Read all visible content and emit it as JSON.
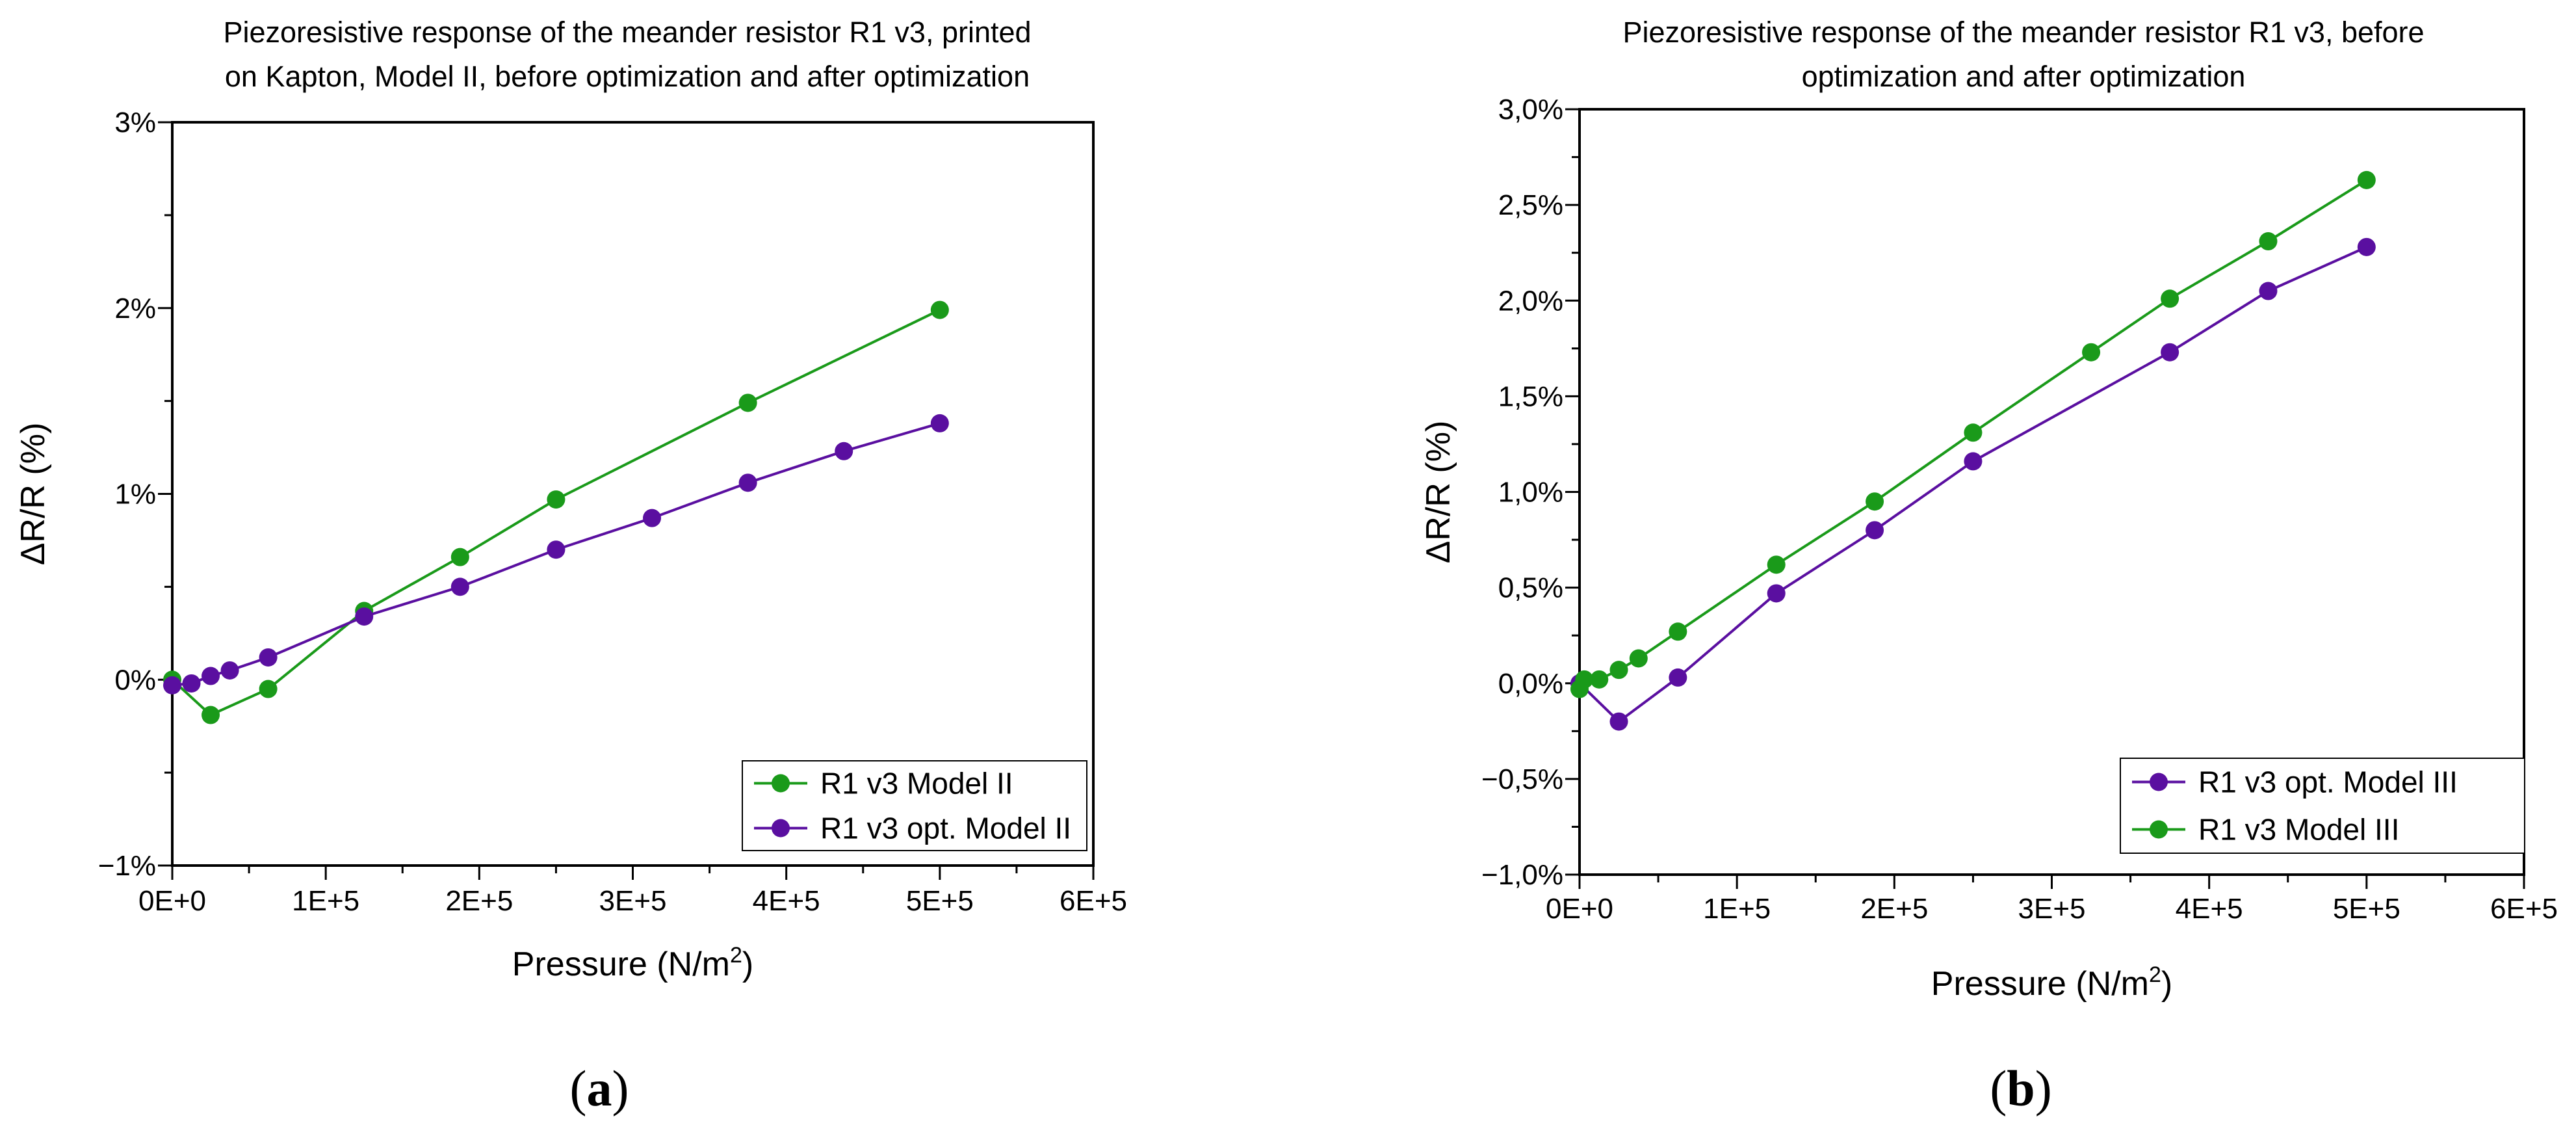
{
  "figure": {
    "panel_a": {
      "open": "(",
      "letter": "a",
      "close": ")"
    },
    "panel_b": {
      "open": "(",
      "letter": "b",
      "close": ")"
    }
  },
  "chart_data": [
    {
      "id": "a",
      "type": "line",
      "title_lines": [
        "Piezoresistive response of the meander resistor R1 v3, printed",
        "on Kapton, Model II, before optimization and after optimization"
      ],
      "xlabel": "Pressure (N/m",
      "xlabel_sup": "2",
      "xlabel_close": ")",
      "ylabel": "ΔR/R (%)",
      "xlim": [
        0,
        600000
      ],
      "ylim": [
        -1,
        3
      ],
      "xticks": [
        0,
        100000,
        200000,
        300000,
        400000,
        500000,
        600000
      ],
      "xtick_labels": [
        "0E+0",
        "1E+5",
        "2E+5",
        "3E+5",
        "4E+5",
        "5E+5",
        "6E+5"
      ],
      "yticks": [
        -1,
        0,
        1,
        2,
        3
      ],
      "ytick_labels": [
        "−1%",
        "0%",
        "1%",
        "2%",
        "3%"
      ],
      "grid": false,
      "legend_position": "bottom-right",
      "series": [
        {
          "name": "R1 v3 Model II",
          "color": "#1a9a1a",
          "x": [
            0,
            25000,
            62500,
            125000,
            187500,
            250000,
            375000,
            500000
          ],
          "y": [
            0.0,
            -0.19,
            -0.05,
            0.37,
            0.66,
            0.97,
            1.49,
            1.99
          ]
        },
        {
          "name": "R1 v3 opt. Model II",
          "color": "#5a0fa0",
          "x": [
            0,
            12500,
            25000,
            37500,
            62500,
            125000,
            187500,
            250000,
            312500,
            375000,
            437500,
            500000
          ],
          "y": [
            -0.03,
            -0.02,
            0.02,
            0.05,
            0.12,
            0.34,
            0.5,
            0.7,
            0.87,
            1.06,
            1.23,
            1.38
          ]
        }
      ]
    },
    {
      "id": "b",
      "type": "line",
      "title_lines": [
        "Piezoresistive response of the meander resistor R1 v3, before",
        "optimization and after optimization"
      ],
      "xlabel": "Pressure (N/m",
      "xlabel_sup": "2",
      "xlabel_close": ")",
      "ylabel": "ΔR/R (%)",
      "xlim": [
        0,
        600000
      ],
      "ylim": [
        -1,
        3
      ],
      "xticks": [
        0,
        100000,
        200000,
        300000,
        400000,
        500000,
        600000
      ],
      "xtick_labels": [
        "0E+0",
        "1E+5",
        "2E+5",
        "3E+5",
        "4E+5",
        "5E+5",
        "6E+5"
      ],
      "yticks": [
        -1,
        -0.5,
        0,
        0.5,
        1,
        1.5,
        2,
        2.5,
        3
      ],
      "ytick_labels": [
        "−1,0%",
        "−0,5%",
        "0,0%",
        "0,5%",
        "1,0%",
        "1,5%",
        "2,0%",
        "2,5%",
        "3,0%"
      ],
      "grid": false,
      "legend_position": "bottom-right",
      "series": [
        {
          "name": "R1 v3 opt. Model III",
          "color": "#5a0fa0",
          "x": [
            0,
            25000,
            62500,
            125000,
            187500,
            250000,
            375000,
            437500,
            500000
          ],
          "y": [
            0.0,
            -0.2,
            0.03,
            0.47,
            0.8,
            1.16,
            1.73,
            2.05,
            2.28
          ]
        },
        {
          "name": "R1 v3 Model III",
          "color": "#1a9a1a",
          "x": [
            0,
            3000,
            12500,
            25000,
            37500,
            62500,
            125000,
            187500,
            250000,
            325000,
            375000,
            437500,
            500000
          ],
          "y": [
            -0.03,
            0.02,
            0.02,
            0.07,
            0.13,
            0.27,
            0.62,
            0.95,
            1.31,
            1.73,
            2.01,
            2.31,
            2.63
          ]
        }
      ]
    }
  ]
}
